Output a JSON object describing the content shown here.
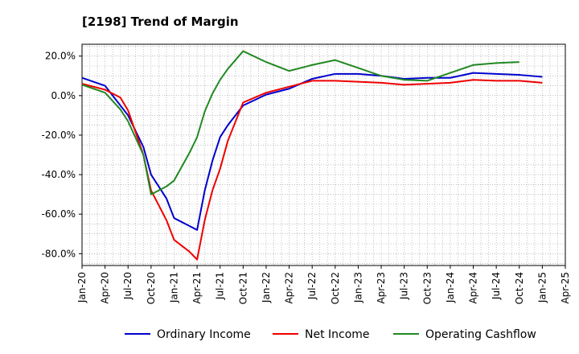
{
  "chart_data": {
    "type": "line",
    "title": "[2198]  Trend of Margin",
    "xlabel": "",
    "ylabel": "",
    "ylim": [
      -86,
      26
    ],
    "yticks": [
      20,
      0,
      -20,
      -40,
      -60,
      -80
    ],
    "ytick_labels": [
      "20.0%",
      "0.0%",
      "-20.0%",
      "-40.0%",
      "-60.0%",
      "-80.0%"
    ],
    "xlim": [
      "2020-01",
      "2025-04"
    ],
    "xtick_labels": [
      "Jan-20",
      "Apr-20",
      "Jul-20",
      "Oct-20",
      "Jan-21",
      "Apr-21",
      "Jul-21",
      "Oct-21",
      "Jan-22",
      "Apr-22",
      "Jul-22",
      "Oct-22",
      "Jan-23",
      "Apr-23",
      "Jul-23",
      "Oct-23",
      "Jan-24",
      "Apr-24",
      "Jul-24",
      "Oct-24",
      "Jan-25",
      "Apr-25"
    ],
    "grid": true,
    "legend_position": "bottom",
    "series": [
      {
        "name": "Ordinary Income",
        "color": "#0000cc",
        "points": [
          [
            "2020-01",
            9.0
          ],
          [
            "2020-04",
            5.0
          ],
          [
            "2020-07",
            -10.0
          ],
          [
            "2020-09",
            -26.0
          ],
          [
            "2020-10",
            -40.0
          ],
          [
            "2020-12",
            -52.0
          ],
          [
            "2021-01",
            -62.0
          ],
          [
            "2021-03",
            -66.0
          ],
          [
            "2021-04",
            -68.0
          ],
          [
            "2021-05",
            -48.0
          ],
          [
            "2021-06",
            -33.0
          ],
          [
            "2021-07",
            -21.0
          ],
          [
            "2021-08",
            -15.0
          ],
          [
            "2021-10",
            -5.0
          ],
          [
            "2022-01",
            0.5
          ],
          [
            "2022-04",
            3.5
          ],
          [
            "2022-07",
            8.5
          ],
          [
            "2022-10",
            11.0
          ],
          [
            "2023-01",
            11.0
          ],
          [
            "2023-04",
            10.0
          ],
          [
            "2023-07",
            8.5
          ],
          [
            "2023-10",
            9.0
          ],
          [
            "2024-01",
            9.0
          ],
          [
            "2024-04",
            11.5
          ],
          [
            "2024-07",
            11.0
          ],
          [
            "2024-10",
            10.5
          ],
          [
            "2025-01",
            9.5
          ]
        ]
      },
      {
        "name": "Net Income",
        "color": "#ee0000",
        "points": [
          [
            "2020-01",
            6.0
          ],
          [
            "2020-04",
            3.0
          ],
          [
            "2020-06",
            -1.0
          ],
          [
            "2020-07",
            -7.5
          ],
          [
            "2020-09",
            -30.0
          ],
          [
            "2020-10",
            -48.0
          ],
          [
            "2020-12",
            -63.0
          ],
          [
            "2021-01",
            -73.0
          ],
          [
            "2021-03",
            -79.0
          ],
          [
            "2021-04",
            -83.0
          ],
          [
            "2021-05",
            -63.0
          ],
          [
            "2021-06",
            -48.0
          ],
          [
            "2021-07",
            -37.0
          ],
          [
            "2021-08",
            -23.0
          ],
          [
            "2021-10",
            -3.5
          ],
          [
            "2022-01",
            1.5
          ],
          [
            "2022-04",
            4.5
          ],
          [
            "2022-07",
            7.5
          ],
          [
            "2022-10",
            7.5
          ],
          [
            "2023-01",
            7.0
          ],
          [
            "2023-04",
            6.5
          ],
          [
            "2023-07",
            5.5
          ],
          [
            "2023-10",
            6.0
          ],
          [
            "2024-01",
            6.5
          ],
          [
            "2024-04",
            8.0
          ],
          [
            "2024-07",
            7.5
          ],
          [
            "2024-10",
            7.5
          ],
          [
            "2025-01",
            6.5
          ]
        ]
      },
      {
        "name": "Operating Cashflow",
        "color": "#228822",
        "points": [
          [
            "2020-01",
            5.5
          ],
          [
            "2020-04",
            1.5
          ],
          [
            "2020-06",
            -7.0
          ],
          [
            "2020-07",
            -13.0
          ],
          [
            "2020-09",
            -30.0
          ],
          [
            "2020-10",
            -50.0
          ],
          [
            "2020-12",
            -46.0
          ],
          [
            "2021-01",
            -43.0
          ],
          [
            "2021-03",
            -29.0
          ],
          [
            "2021-04",
            -21.0
          ],
          [
            "2021-05",
            -8.0
          ],
          [
            "2021-06",
            1.0
          ],
          [
            "2021-07",
            8.0
          ],
          [
            "2021-08",
            13.5
          ],
          [
            "2021-10",
            22.5
          ],
          [
            "2022-01",
            17.0
          ],
          [
            "2022-04",
            12.5
          ],
          [
            "2022-07",
            15.5
          ],
          [
            "2022-10",
            18.0
          ],
          [
            "2023-01",
            14.0
          ],
          [
            "2023-04",
            10.0
          ],
          [
            "2023-07",
            8.0
          ],
          [
            "2023-10",
            7.5
          ],
          [
            "2024-01",
            11.5
          ],
          [
            "2024-04",
            15.5
          ],
          [
            "2024-07",
            16.5
          ],
          [
            "2024-10",
            17.0
          ]
        ]
      }
    ]
  }
}
